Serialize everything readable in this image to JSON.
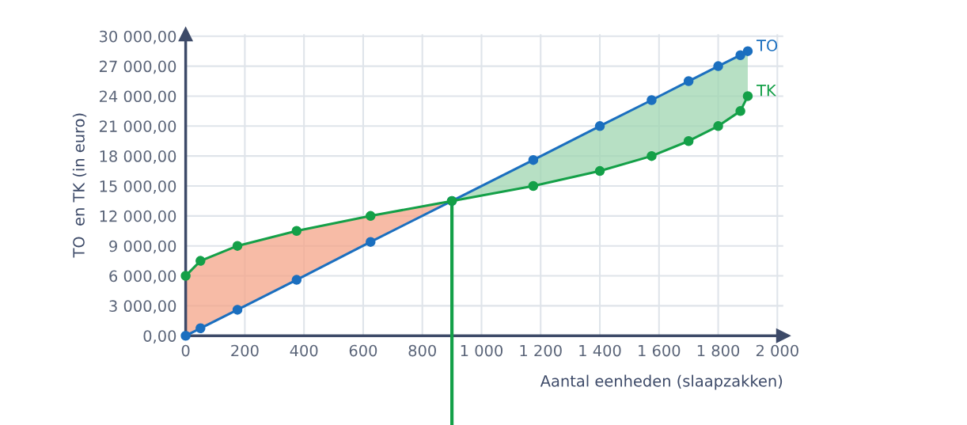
{
  "chart_data": {
    "type": "line",
    "xlabel": "Aantal eenheden (slaapzakken)",
    "ylabel": "TO  en TK (in euro)",
    "xlim": [
      0,
      2020
    ],
    "xticks": [
      0,
      200,
      400,
      600,
      800,
      {
        "value": 1000,
        "label": "1 000"
      },
      {
        "value": 1200,
        "label": "1 200"
      },
      {
        "value": 1400,
        "label": "1 400"
      },
      {
        "value": 1600,
        "label": "1 600"
      },
      {
        "value": 1800,
        "label": "1 800"
      },
      {
        "value": 2000,
        "label": "2 000"
      }
    ],
    "ylim": [
      0,
      30200
    ],
    "yticks": [
      {
        "value": 0,
        "label": "0,00"
      },
      {
        "value": 3000,
        "label": "3 000,00"
      },
      {
        "value": 6000,
        "label": "6 000,00"
      },
      {
        "value": 9000,
        "label": "9 000,00"
      },
      {
        "value": 12000,
        "label": "12 000,00"
      },
      {
        "value": 15000,
        "label": "15 000,00"
      },
      {
        "value": 18000,
        "label": "18 000,00"
      },
      {
        "value": 21000,
        "label": "21 000,00"
      },
      {
        "value": 24000,
        "label": "24 000,00"
      },
      {
        "value": 27000,
        "label": "27 000,00"
      },
      {
        "value": 30000,
        "label": "30 000,00"
      }
    ],
    "grid": true,
    "marker": "circle",
    "line_style": "solid",
    "series": [
      {
        "name": "TO",
        "color": "#1b6fbf",
        "x": [
          0,
          50,
          175,
          375,
          625,
          900,
          1175,
          1400,
          1575,
          1700,
          1800,
          1875,
          1900
        ],
        "values": [
          0,
          750,
          2600,
          5600,
          9400,
          13500,
          17600,
          21000,
          23600,
          25500,
          27000,
          28100,
          28500
        ],
        "lower": [
          null,
          null,
          null,
          null,
          null,
          13500,
          15000,
          16500,
          18000,
          19500,
          21000,
          22500,
          24000
        ],
        "upper": [
          null,
          null,
          null,
          null,
          null,
          13500,
          17600,
          21000,
          23600,
          25500,
          27000,
          28100,
          28500
        ]
      },
      {
        "name": "TK",
        "color": "#14a048",
        "x": [
          0,
          50,
          175,
          375,
          625,
          900,
          1175,
          1400,
          1575,
          1700,
          1800,
          1875,
          1900
        ],
        "values": [
          6000,
          7500,
          9000,
          10500,
          12000,
          13500,
          15000,
          16500,
          18000,
          19500,
          21000,
          22500,
          24000
        ],
        "lower": [
          0,
          750,
          2600,
          5600,
          9400,
          13500,
          null,
          null,
          null,
          null,
          null,
          null,
          null
        ],
        "upper": [
          6000,
          7500,
          9000,
          10500,
          12000,
          13500,
          null,
          null,
          null,
          null,
          null,
          null,
          null
        ]
      }
    ],
    "ref_lines": [
      {
        "axis": "x",
        "value": 900,
        "label": null,
        "color": "#14a048"
      }
    ]
  }
}
